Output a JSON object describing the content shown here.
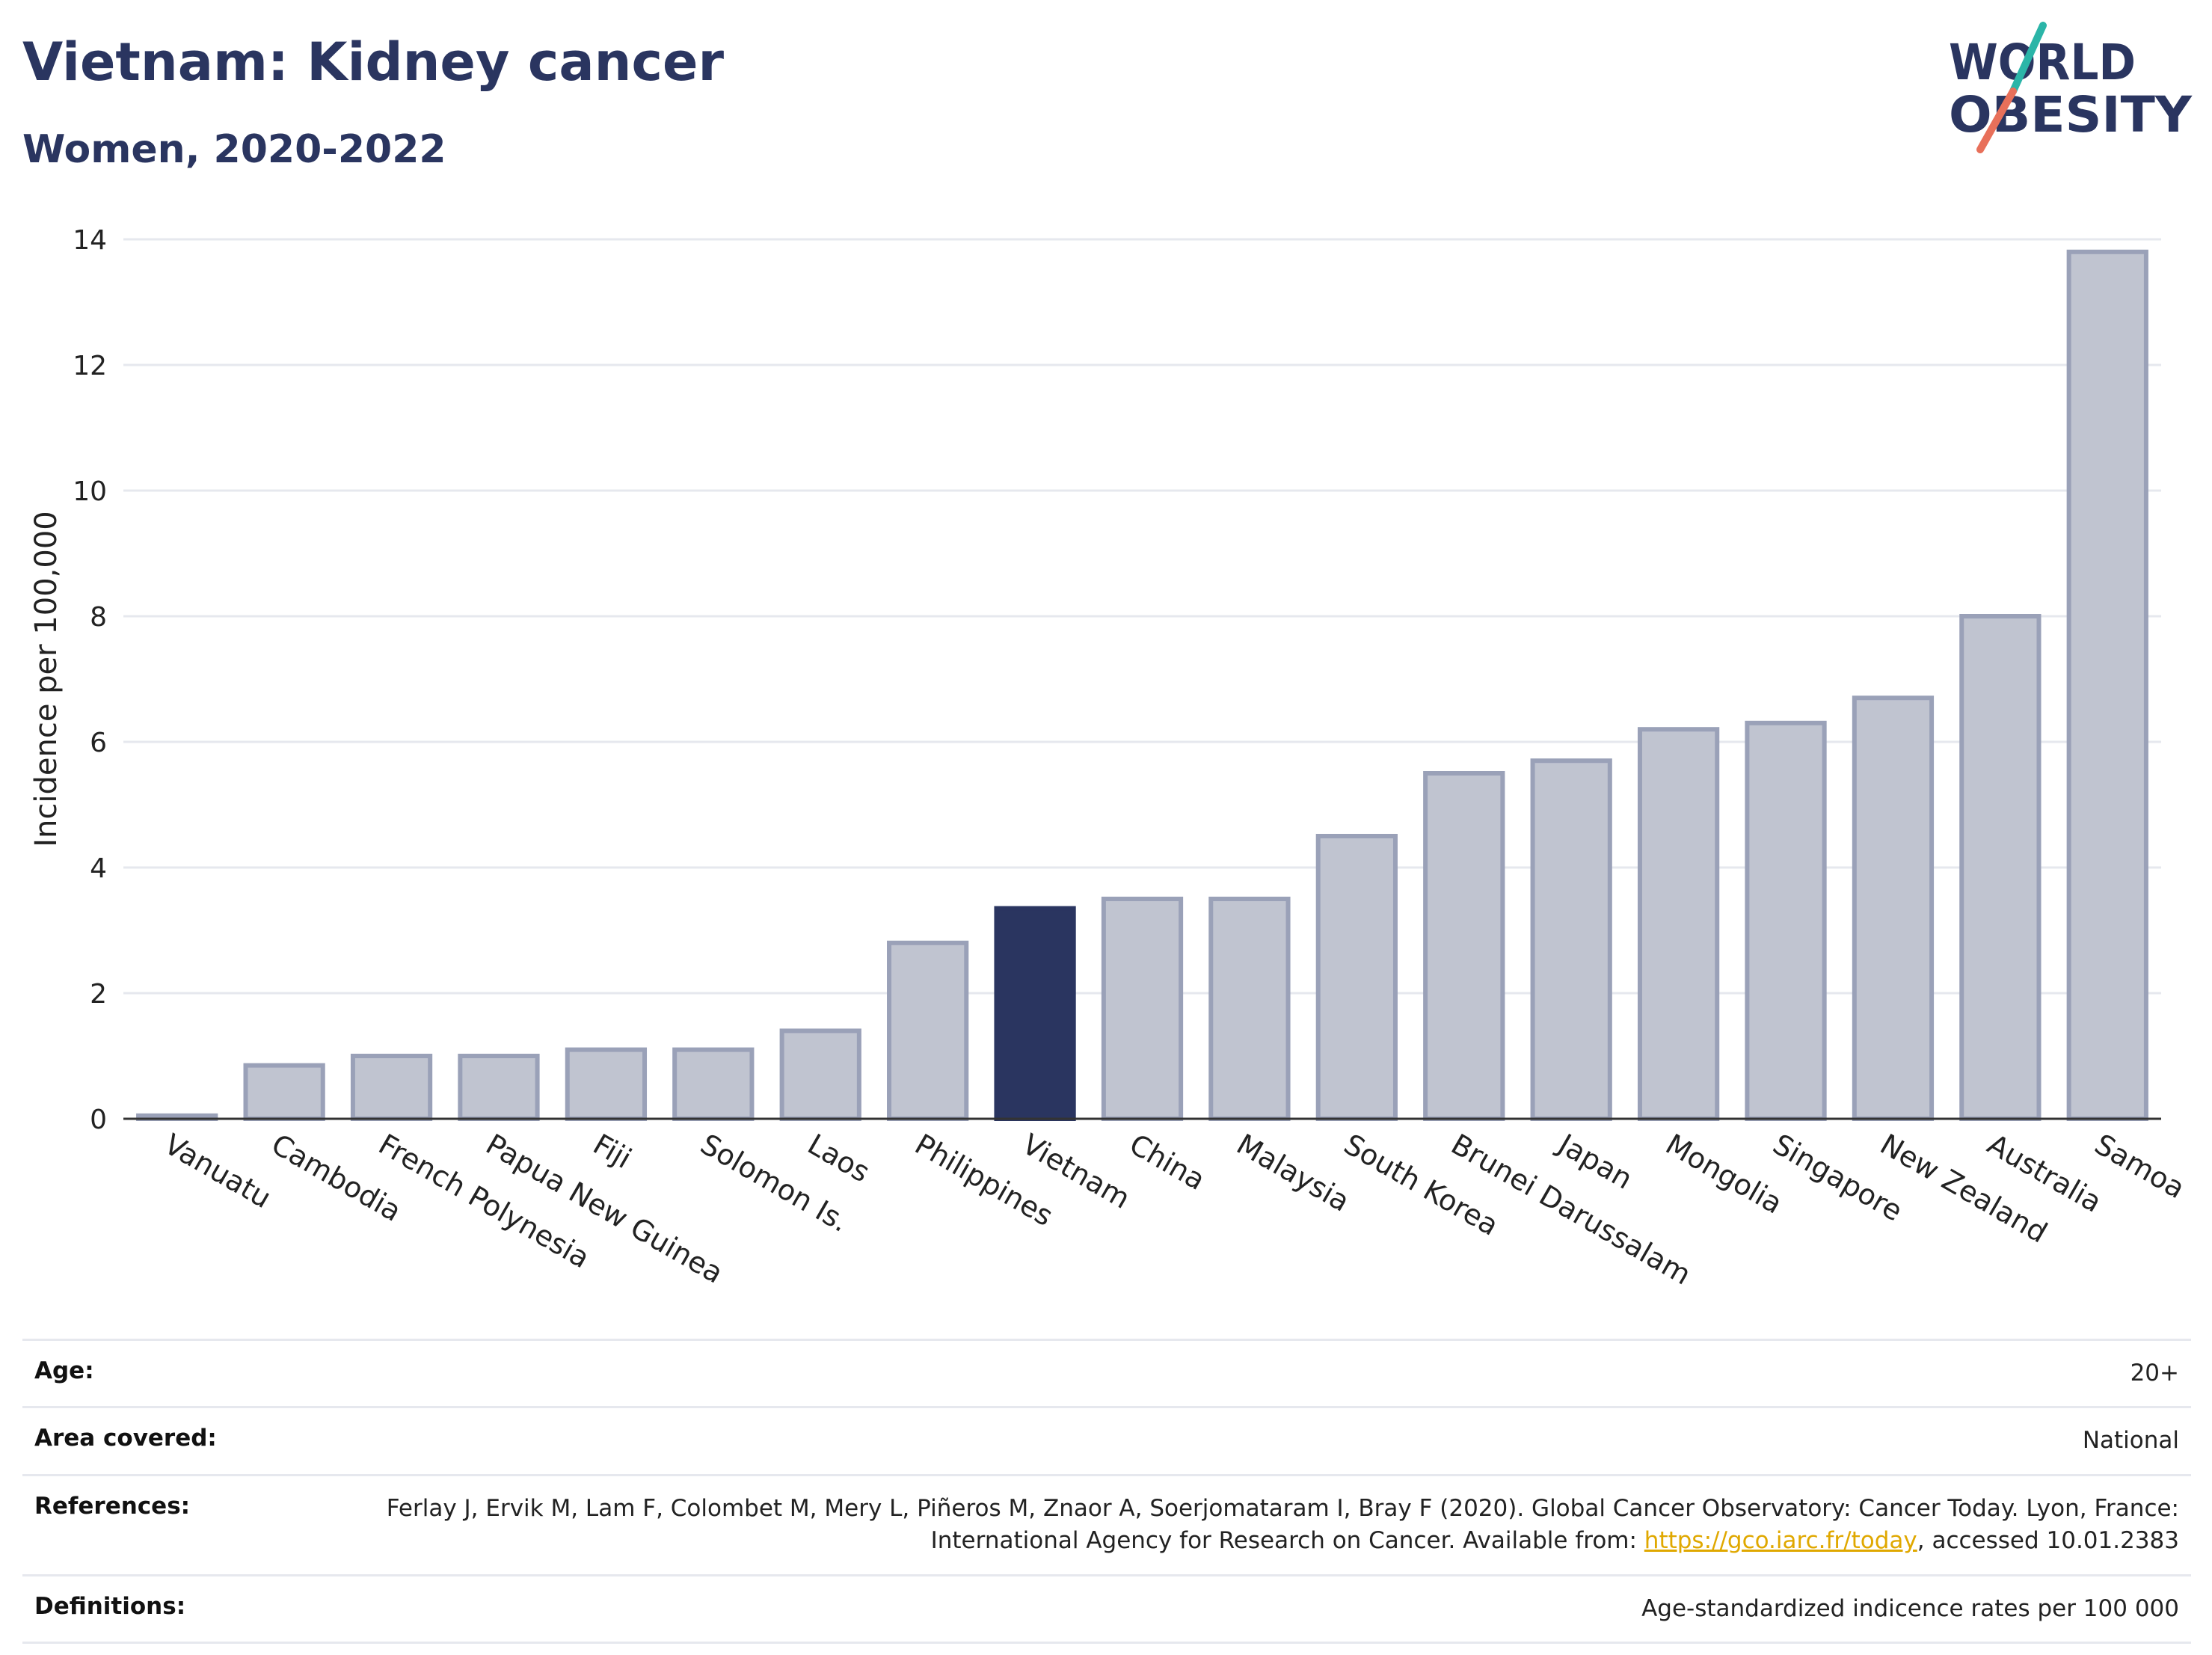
{
  "header": {
    "title": "Vietnam: Kidney cancer",
    "subtitle": "Women, 2020-2022"
  },
  "logo": {
    "line1": "WORLD",
    "line2": "OBESITY",
    "colors": {
      "text": "#2a3560",
      "slash_top": "#2bb5a8",
      "slash_bottom": "#e8705a"
    }
  },
  "chart_data": {
    "type": "bar",
    "ylabel": "Incidence per 100,000",
    "xlabel": "",
    "ylim": [
      0,
      14
    ],
    "yticks": [
      0,
      2,
      4,
      6,
      8,
      10,
      12,
      14
    ],
    "grid": true,
    "categories": [
      "Vanuatu",
      "Cambodia",
      "French Polynesia",
      "Papua New Guinea",
      "Fiji",
      "Solomon Is.",
      "Laos",
      "Philippines",
      "Vietnam",
      "China",
      "Malaysia",
      "South Korea",
      "Brunei Darussalam",
      "Japan",
      "Mongolia",
      "Singapore",
      "New Zealand",
      "Australia",
      "Samoa"
    ],
    "values": [
      0.05,
      0.85,
      1.0,
      1.0,
      1.1,
      1.1,
      1.4,
      2.8,
      3.35,
      3.5,
      3.5,
      4.5,
      5.5,
      5.7,
      6.2,
      6.3,
      6.7,
      8.0,
      13.8
    ],
    "highlight": "Vietnam",
    "colors": {
      "bar_fill": "#c0c4d0",
      "bar_stroke": "#9aa1b8",
      "highlight_fill": "#2a3560",
      "grid": "#e6e8ee",
      "axis": "#333333"
    }
  },
  "meta": {
    "age_label": "Age:",
    "age_value": "20+",
    "area_label": "Area covered:",
    "area_value": "National",
    "references_label": "References:",
    "references_text": "Ferlay J, Ervik M, Lam F, Colombet M, Mery L, Piñeros M, Znaor A, Soerjomataram I, Bray F (2020). Global Cancer Observatory: Cancer Today. Lyon, France: International Agency for Research on Cancer. Available from: ",
    "references_link": "https://gco.iarc.fr/today",
    "references_suffix": ", accessed 10.01.2383",
    "definitions_label": "Definitions:",
    "definitions_value": "Age-standardized indicence rates per 100 000"
  }
}
